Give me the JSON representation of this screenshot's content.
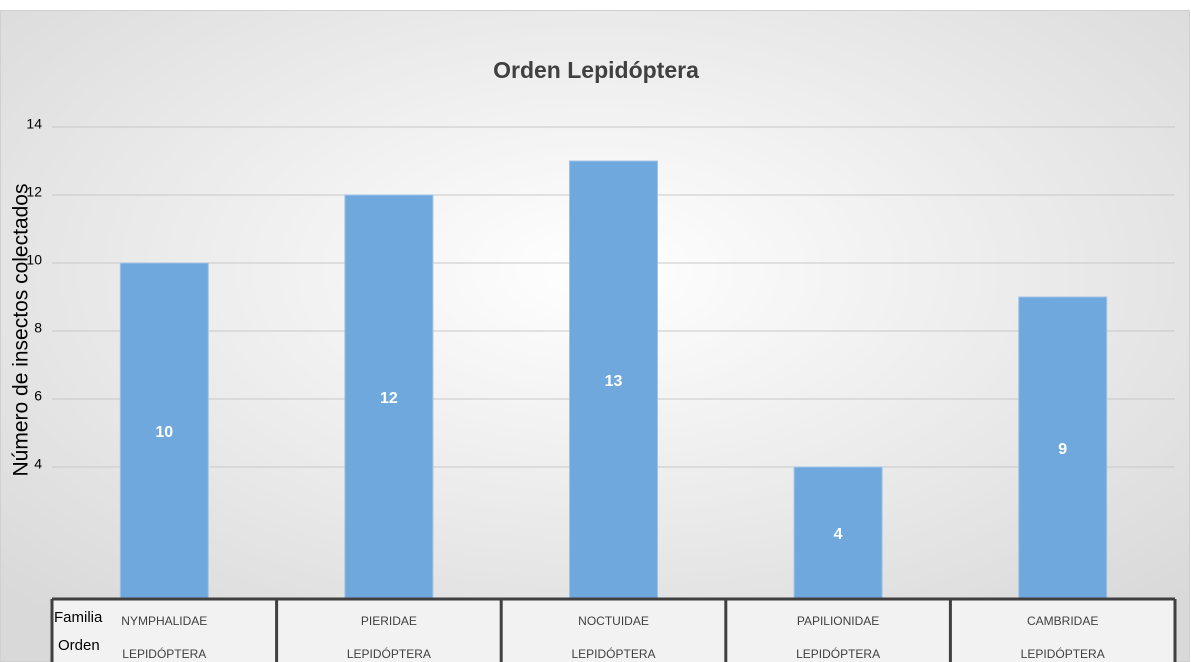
{
  "chart_data": {
    "type": "bar",
    "title": "Orden Lepidóptera",
    "y_label": "Número de insectos colectados",
    "row_labels": [
      "Familia",
      "Orden"
    ],
    "categories": [
      "NYMPHALIDAE",
      "PIERIDAE",
      "NOCTUIDAE",
      "PAPILIONIDAE",
      "CAMBRIDAE"
    ],
    "orden": [
      "LEPIDÓPTERA",
      "LEPIDÓPTERA",
      "LEPIDÓPTERA",
      "LEPIDÓPTERA",
      "LEPIDÓPTERA"
    ],
    "values": [
      10,
      12,
      13,
      4,
      9
    ],
    "color": "#6fa8dc",
    "ylim": [
      0,
      14
    ],
    "yticks": [
      4,
      6,
      8,
      10,
      12,
      14
    ],
    "grid": true
  }
}
